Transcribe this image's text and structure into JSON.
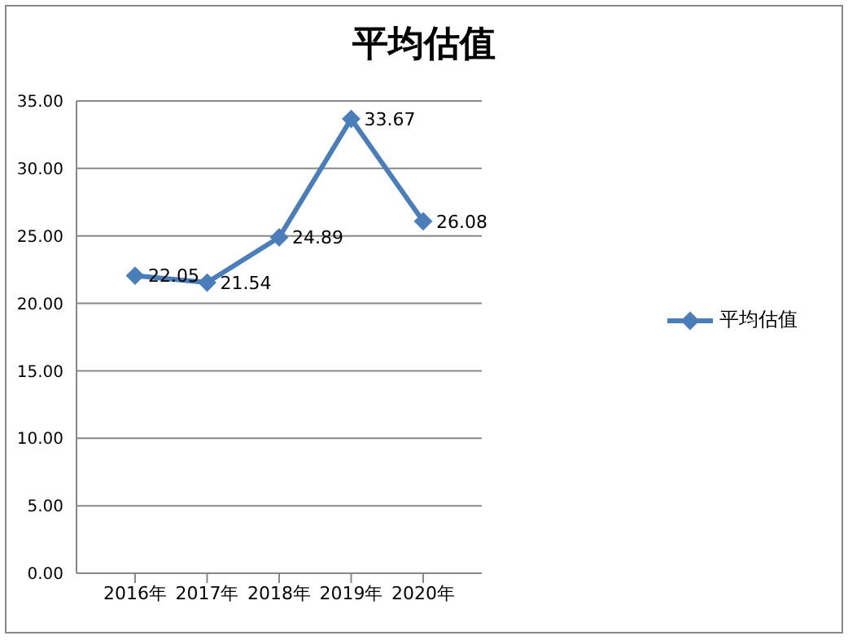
{
  "chart_data": {
    "type": "line",
    "title": "平均估值",
    "categories": [
      "2016年",
      "2017年",
      "2018年",
      "2019年",
      "2020年"
    ],
    "series": [
      {
        "name": "平均估值",
        "color": "#4a7ebb",
        "values": [
          22.05,
          21.54,
          24.89,
          33.67,
          26.08
        ]
      }
    ],
    "ylim": [
      0,
      35
    ],
    "yticks": [
      {
        "value": 0,
        "label": "0.00"
      },
      {
        "value": 5,
        "label": "5.00"
      },
      {
        "value": 10,
        "label": "10.00"
      },
      {
        "value": 15,
        "label": "15.00"
      },
      {
        "value": 20,
        "label": "20.00"
      },
      {
        "value": 25,
        "label": "25.00"
      },
      {
        "value": 30,
        "label": "30.00"
      },
      {
        "value": 35,
        "label": "35.00"
      }
    ],
    "grid": "y",
    "legend": "right",
    "marker": "diamond",
    "line_style": "solid",
    "data_labels": true
  }
}
